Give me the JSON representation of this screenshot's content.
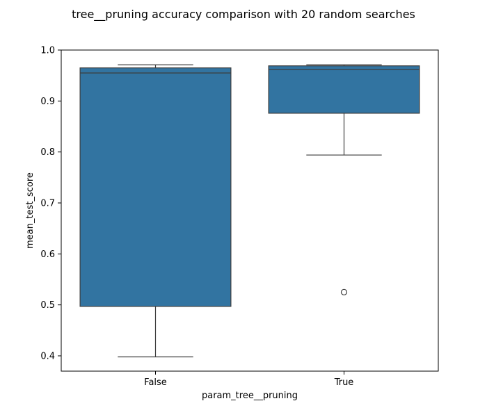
{
  "chart_data": {
    "type": "box",
    "title": "tree__pruning accuracy comparison with 20 random searches",
    "xlabel": "param_tree__pruning",
    "ylabel": "mean_test_score",
    "categories": [
      "False",
      "True"
    ],
    "ylim": [
      0.37,
      1.0
    ],
    "yticks": [
      "0.4",
      "0.5",
      "0.6",
      "0.7",
      "0.8",
      "0.9",
      "1.0"
    ],
    "grid": false,
    "box_color": "#3274a1",
    "line_color": "#3d3d3d",
    "boxes": [
      {
        "category": "False",
        "whisker_low": 0.398,
        "q1": 0.497,
        "median": 0.955,
        "q3": 0.965,
        "whisker_high": 0.971,
        "outliers": []
      },
      {
        "category": "True",
        "whisker_low": 0.794,
        "q1": 0.876,
        "median": 0.962,
        "q3": 0.969,
        "whisker_high": 0.971,
        "outliers": [
          0.525
        ]
      }
    ]
  }
}
